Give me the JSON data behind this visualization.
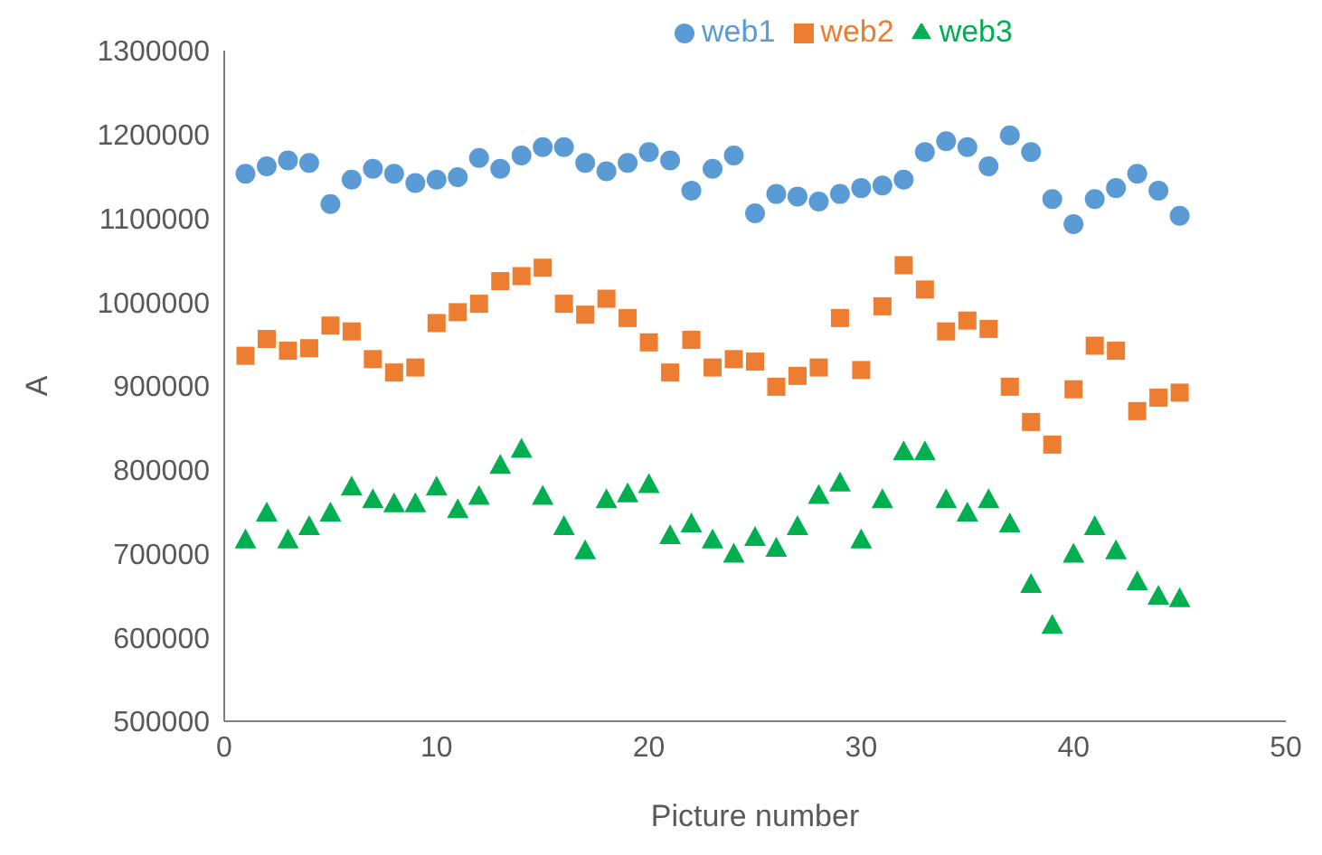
{
  "chart_data": {
    "type": "scatter",
    "xlabel": "Picture number",
    "ylabel": "A",
    "x": [
      1,
      2,
      3,
      4,
      5,
      6,
      7,
      8,
      9,
      10,
      11,
      12,
      13,
      14,
      15,
      16,
      17,
      18,
      19,
      20,
      21,
      22,
      23,
      24,
      25,
      26,
      27,
      28,
      29,
      30,
      31,
      32,
      33,
      34,
      35,
      36,
      37,
      38,
      39,
      40,
      41,
      42,
      43,
      44,
      45
    ],
    "xlim": [
      0,
      50
    ],
    "xticks": [
      0,
      10,
      20,
      30,
      40,
      50
    ],
    "ylim": [
      500000,
      1300000
    ],
    "yticks": [
      500000,
      600000,
      700000,
      800000,
      900000,
      1000000,
      1100000,
      1200000,
      1300000
    ],
    "grid": false,
    "legend": "top",
    "series": [
      {
        "name": "web1",
        "color": "#5b9bd5",
        "marker": "circle",
        "values": [
          1153000,
          1162000,
          1169000,
          1166000,
          1117000,
          1146000,
          1159000,
          1153000,
          1142000,
          1146000,
          1149000,
          1172000,
          1159000,
          1175000,
          1185000,
          1185000,
          1166000,
          1156000,
          1166000,
          1179000,
          1169000,
          1133000,
          1159000,
          1175000,
          1106000,
          1129000,
          1126000,
          1120000,
          1129000,
          1136000,
          1139000,
          1146000,
          1179000,
          1192000,
          1185000,
          1162000,
          1199000,
          1179000,
          1123000,
          1093000,
          1123000,
          1136000,
          1153000,
          1133000,
          1103000
        ]
      },
      {
        "name": "web2",
        "color": "#ed7d31",
        "marker": "square",
        "values": [
          936000,
          956000,
          942000,
          945000,
          972000,
          965000,
          932000,
          916000,
          922000,
          975000,
          988000,
          998000,
          1025000,
          1031000,
          1041000,
          998000,
          985000,
          1004000,
          981000,
          952000,
          916000,
          955000,
          922000,
          932000,
          929000,
          899000,
          912000,
          922000,
          981000,
          919000,
          995000,
          1044000,
          1015000,
          965000,
          978000,
          968000,
          899000,
          857000,
          830000,
          896000,
          948000,
          942000,
          870000,
          886000,
          892000
        ]
      },
      {
        "name": "web3",
        "color": "#00b050",
        "marker": "triangle",
        "values": [
          717000,
          749000,
          717000,
          733000,
          749000,
          780000,
          765000,
          760000,
          760000,
          780000,
          753000,
          769000,
          806000,
          825000,
          769000,
          733000,
          704000,
          765000,
          772000,
          783000,
          722000,
          736000,
          717000,
          700000,
          720000,
          707000,
          733000,
          770000,
          785000,
          717000,
          765000,
          822000,
          822000,
          765000,
          749000,
          765000,
          736000,
          664000,
          615000,
          700000,
          733000,
          704000,
          667000,
          650000,
          647000
        ]
      }
    ]
  }
}
